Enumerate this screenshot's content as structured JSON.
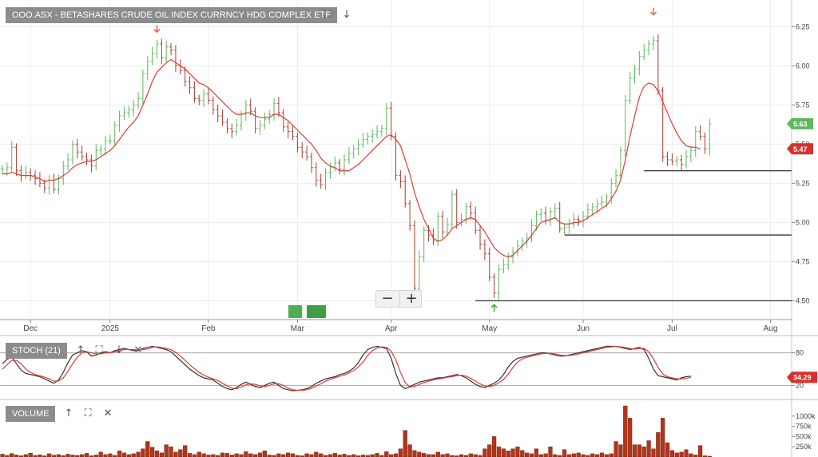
{
  "panels": {
    "price": {
      "title": "OOO.ASX - BETASHARES CRUDE OIL INDEX CURRNCY HDG COMPLEX ETF"
    },
    "stoch": {
      "title": "STOCH (21)"
    },
    "volume": {
      "title": "VOLUME"
    }
  },
  "toolbar_icons": [
    "expand-icon",
    "arrow-down-icon",
    "arrow-up-icon",
    "close-icon"
  ],
  "colors": {
    "up": "#5cb85c",
    "down": "#b03a2e",
    "ma": "#e53935",
    "stoch_k": "#333333",
    "stoch_d": "#e53935",
    "volume": "#b33518",
    "last_up": "#5cb85c",
    "last_down": "#d9302b"
  },
  "chart_data": [
    {
      "type": "line",
      "name": "price",
      "x_tick_labels": [
        "Dec",
        "2025",
        "Feb",
        "Mar",
        "Apr",
        "May",
        "Jun",
        "Jul",
        "Aug"
      ],
      "x_tick_index": [
        6,
        23,
        44,
        63,
        83,
        104,
        124,
        143,
        164
      ],
      "yticks": [
        4.5,
        4.75,
        5.0,
        5.25,
        5.5,
        5.75,
        6.0,
        6.25
      ],
      "y_tick_labels": [
        "4.50",
        "4.75",
        "5.00",
        "5.25",
        "5.50",
        "5.75",
        "6.00",
        "6.25"
      ],
      "ylim": [
        4.38,
        6.42
      ],
      "xlim": [
        0,
        168
      ],
      "close": [
        5.34,
        5.35,
        5.48,
        5.33,
        5.3,
        5.32,
        5.3,
        5.28,
        5.25,
        5.22,
        5.27,
        5.21,
        5.28,
        5.36,
        5.4,
        5.5,
        5.45,
        5.42,
        5.4,
        5.36,
        5.46,
        5.47,
        5.52,
        5.52,
        5.62,
        5.68,
        5.7,
        5.72,
        5.75,
        5.79,
        5.95,
        6.03,
        6.08,
        6.14,
        6.05,
        6.12,
        6.1,
        6.0,
        5.97,
        5.9,
        5.86,
        5.79,
        5.78,
        5.82,
        5.78,
        5.72,
        5.68,
        5.64,
        5.6,
        5.58,
        5.62,
        5.69,
        5.75,
        5.71,
        5.6,
        5.62,
        5.66,
        5.69,
        5.76,
        5.7,
        5.61,
        5.58,
        5.55,
        5.48,
        5.45,
        5.42,
        5.35,
        5.27,
        5.24,
        5.32,
        5.35,
        5.38,
        5.34,
        5.4,
        5.44,
        5.47,
        5.5,
        5.53,
        5.55,
        5.56,
        5.58,
        5.6,
        5.73,
        5.55,
        5.3,
        5.26,
        5.12,
        4.98,
        4.58,
        4.78,
        4.95,
        4.92,
        4.88,
        5.04,
        4.94,
        4.99,
        5.18,
        5.0,
        5.02,
        5.1,
        5.06,
        4.95,
        4.86,
        4.8,
        4.65,
        4.55,
        4.7,
        4.73,
        4.78,
        4.81,
        4.85,
        4.88,
        4.9,
        4.98,
        5.05,
        5.06,
        5.01,
        5.07,
        5.09,
        4.96,
        4.97,
        4.99,
        5.02,
        5.01,
        5.04,
        5.08,
        5.1,
        5.12,
        5.13,
        5.16,
        5.25,
        5.3,
        5.46,
        5.78,
        5.92,
        5.98,
        6.06,
        6.1,
        6.14,
        6.16,
        5.84,
        5.42,
        5.4,
        5.39,
        5.4,
        5.37,
        5.42,
        5.46,
        5.58,
        5.55,
        5.47,
        5.63
      ],
      "moving_average": [
        5.31,
        5.31,
        5.32,
        5.31,
        5.3,
        5.3,
        5.3,
        5.29,
        5.28,
        5.26,
        5.27,
        5.27,
        5.28,
        5.3,
        5.32,
        5.35,
        5.37,
        5.38,
        5.39,
        5.39,
        5.4,
        5.42,
        5.44,
        5.46,
        5.49,
        5.53,
        5.57,
        5.61,
        5.64,
        5.68,
        5.75,
        5.82,
        5.9,
        5.96,
        5.99,
        6.02,
        6.04,
        6.02,
        6.0,
        5.98,
        5.95,
        5.92,
        5.89,
        5.88,
        5.86,
        5.83,
        5.8,
        5.77,
        5.74,
        5.71,
        5.69,
        5.69,
        5.7,
        5.7,
        5.68,
        5.67,
        5.67,
        5.67,
        5.69,
        5.69,
        5.67,
        5.65,
        5.62,
        5.59,
        5.56,
        5.53,
        5.5,
        5.46,
        5.41,
        5.38,
        5.36,
        5.35,
        5.33,
        5.33,
        5.33,
        5.35,
        5.37,
        5.4,
        5.43,
        5.46,
        5.49,
        5.52,
        5.55,
        5.56,
        5.53,
        5.49,
        5.4,
        5.31,
        5.19,
        5.1,
        5.02,
        4.96,
        4.9,
        4.88,
        4.89,
        4.92,
        4.96,
        4.98,
        5.0,
        5.02,
        5.03,
        5.02,
        4.98,
        4.94,
        4.89,
        4.84,
        4.81,
        4.79,
        4.78,
        4.79,
        4.82,
        4.85,
        4.88,
        4.92,
        4.96,
        5.0,
        5.01,
        5.02,
        5.03,
        5.0,
        4.99,
        4.99,
        5.0,
        5.0,
        5.01,
        5.03,
        5.05,
        5.07,
        5.09,
        5.11,
        5.15,
        5.2,
        5.27,
        5.4,
        5.55,
        5.68,
        5.8,
        5.87,
        5.89,
        5.88,
        5.84,
        5.77,
        5.7,
        5.63,
        5.57,
        5.52,
        5.49,
        5.48,
        5.48,
        5.47
      ],
      "price_lines": [
        {
          "value": 5.33,
          "from_index": 137
        },
        {
          "value": 4.92,
          "from_index": 120
        },
        {
          "value": 4.5,
          "from_index": 101
        }
      ],
      "signals": [
        {
          "index": 33,
          "value": 6.22,
          "direction": "sell"
        },
        {
          "index": 139,
          "value": 6.33,
          "direction": "sell"
        },
        {
          "index": 105,
          "value": 4.47,
          "direction": "buy"
        }
      ],
      "last_value_labels": [
        {
          "value": 5.63,
          "label": "5.63",
          "kind": "up"
        },
        {
          "value": 5.47,
          "label": "5.47",
          "kind": "down"
        }
      ]
    },
    {
      "type": "line",
      "name": "stochastic",
      "yticks": [
        20,
        80
      ],
      "y_tick_labels": [
        "20",
        "80"
      ],
      "ylim": [
        0,
        100
      ],
      "k": [
        60,
        68,
        72,
        60,
        48,
        42,
        40,
        38,
        36,
        32,
        28,
        24,
        30,
        44,
        62,
        76,
        80,
        84,
        82,
        74,
        76,
        80,
        82,
        80,
        84,
        86,
        88,
        86,
        84,
        84,
        88,
        90,
        92,
        90,
        88,
        86,
        82,
        74,
        66,
        58,
        50,
        44,
        38,
        34,
        32,
        30,
        24,
        18,
        14,
        12,
        16,
        22,
        26,
        22,
        18,
        16,
        20,
        24,
        26,
        20,
        14,
        12,
        10,
        11,
        12,
        14,
        18,
        24,
        28,
        32,
        34,
        36,
        40,
        42,
        46,
        52,
        62,
        76,
        86,
        90,
        92,
        90,
        88,
        70,
        42,
        20,
        14,
        18,
        22,
        26,
        28,
        30,
        32,
        34,
        34,
        36,
        38,
        40,
        38,
        34,
        28,
        22,
        18,
        16,
        20,
        24,
        30,
        40,
        54,
        64,
        70,
        72,
        74,
        76,
        78,
        80,
        80,
        78,
        76,
        74,
        74,
        76,
        78,
        80,
        82,
        84,
        86,
        88,
        90,
        92,
        92,
        92,
        90,
        88,
        86,
        88,
        90,
        86,
        70,
        50,
        38,
        36,
        34,
        32,
        30,
        34,
        36,
        37
      ],
      "d": [
        50,
        58,
        66,
        66,
        60,
        50,
        44,
        40,
        38,
        35,
        32,
        28,
        28,
        34,
        46,
        60,
        72,
        80,
        82,
        80,
        78,
        78,
        80,
        80,
        82,
        83,
        86,
        86,
        86,
        85,
        86,
        87,
        90,
        91,
        90,
        88,
        86,
        81,
        74,
        66,
        58,
        51,
        44,
        39,
        35,
        32,
        29,
        24,
        19,
        15,
        14,
        17,
        21,
        23,
        22,
        19,
        18,
        20,
        23,
        23,
        20,
        15,
        12,
        11,
        11,
        12,
        15,
        19,
        23,
        28,
        31,
        34,
        37,
        39,
        43,
        47,
        54,
        63,
        75,
        84,
        89,
        91,
        90,
        83,
        67,
        44,
        25,
        17,
        18,
        22,
        25,
        28,
        30,
        32,
        33,
        35,
        36,
        38,
        39,
        37,
        33,
        28,
        23,
        19,
        18,
        20,
        25,
        31,
        41,
        53,
        63,
        69,
        72,
        74,
        76,
        78,
        79,
        79,
        78,
        76,
        75,
        75,
        76,
        78,
        80,
        82,
        84,
        86,
        88,
        90,
        91,
        92,
        91,
        90,
        88,
        87,
        88,
        88,
        82,
        69,
        53,
        41,
        36,
        34,
        32,
        32,
        33,
        35
      ],
      "last_value_label": "34.29"
    },
    {
      "type": "bar",
      "name": "volume",
      "yticks": [
        250000,
        500000,
        750000,
        1000000
      ],
      "y_tick_labels": [
        "250k",
        "500k",
        "750k",
        "1000k"
      ],
      "ylim": [
        0,
        1250000
      ],
      "values": [
        70000,
        40000,
        85000,
        50000,
        30000,
        60000,
        95000,
        40000,
        55000,
        30000,
        80000,
        45000,
        60000,
        35000,
        70000,
        50000,
        40000,
        60000,
        90000,
        30000,
        50000,
        120000,
        60000,
        80000,
        40000,
        150000,
        100000,
        60000,
        80000,
        120000,
        200000,
        380000,
        240000,
        150000,
        100000,
        300000,
        250000,
        120000,
        180000,
        280000,
        90000,
        60000,
        120000,
        80000,
        50000,
        60000,
        40000,
        100000,
        90000,
        50000,
        80000,
        60000,
        130000,
        80000,
        60000,
        100000,
        150000,
        50000,
        40000,
        80000,
        60000,
        100000,
        80000,
        40000,
        30000,
        80000,
        60000,
        120000,
        80000,
        40000,
        60000,
        90000,
        50000,
        70000,
        40000,
        60000,
        30000,
        50000,
        40000,
        60000,
        90000,
        40000,
        130000,
        60000,
        80000,
        200000,
        650000,
        300000,
        160000,
        120000,
        90000,
        60000,
        60000,
        120000,
        60000,
        80000,
        40000,
        30000,
        60000,
        40000,
        80000,
        60000,
        40000,
        200000,
        300000,
        500000,
        250000,
        200000,
        150000,
        200000,
        250000,
        160000,
        100000,
        80000,
        200000,
        60000,
        80000,
        250000,
        60000,
        40000,
        180000,
        60000,
        80000,
        100000,
        60000,
        40000,
        80000,
        60000,
        100000,
        60000,
        80000,
        380000,
        300000,
        1250000,
        950000,
        300000,
        300000,
        250000,
        400000,
        200000,
        600000,
        950000,
        350000,
        160000,
        100000,
        120000,
        180000,
        80000,
        50000,
        280000,
        30000,
        20000
      ]
    }
  ]
}
